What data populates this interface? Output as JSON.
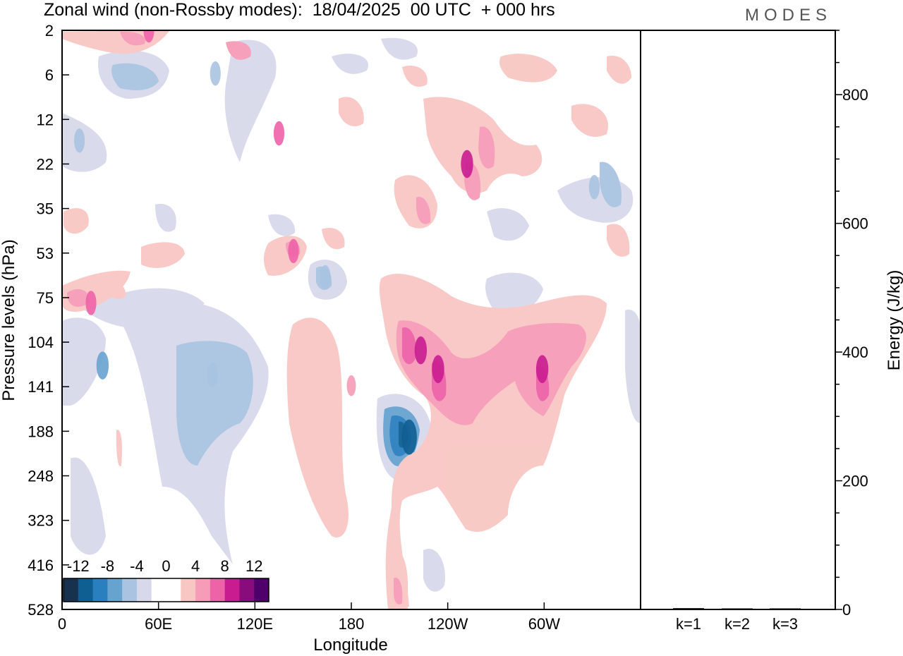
{
  "header": {
    "title": "Zonal wind (non-Rossby modes):  18/04/2025  00 UTC  + 000 hrs",
    "brand": "MODES"
  },
  "chart_data": [
    {
      "type": "heatmap",
      "title": "Zonal wind (non-Rossby modes):  18/04/2025  00 UTC  + 000 hrs",
      "xlabel": "Longitude",
      "ylabel": "Pressure levels (hPa)",
      "x_ticks": [
        "0",
        "60E",
        "120E",
        "180",
        "120W",
        "60W"
      ],
      "y_ticks": [
        "2",
        "6",
        "12",
        "22",
        "35",
        "53",
        "75",
        "104",
        "141",
        "188",
        "248",
        "323",
        "416",
        "528"
      ],
      "y_scale": "log",
      "colorbar": {
        "labels": [
          "-12",
          "-8",
          "-4",
          "0",
          "4",
          "8",
          "12"
        ],
        "colors": [
          "#17324f",
          "#0f5f93",
          "#2a7fbe",
          "#67a3cf",
          "#a9c3e0",
          "#d7d9ea",
          "#ffffff",
          "#ffffff",
          "#f8c7c3",
          "#f69bb8",
          "#ee62a8",
          "#c91c90",
          "#8a0b7c",
          "#4f006a"
        ]
      },
      "features": [
        {
          "lon": 0.265,
          "level": 5.8,
          "value": -6
        },
        {
          "lon": 0.15,
          "level": 1.2,
          "value": 6
        },
        {
          "lon": 0.375,
          "level": 14.5,
          "value": 6
        },
        {
          "lon": 0.03,
          "level": 16,
          "value": -6
        },
        {
          "lon": 0.07,
          "level": 122,
          "value": -8
        },
        {
          "lon": 0.26,
          "level": 130,
          "value": -6
        },
        {
          "lon": 0.6,
          "level": 195,
          "value": -12
        },
        {
          "lon": 0.62,
          "level": 110,
          "value": 8
        },
        {
          "lon": 0.65,
          "level": 125,
          "value": 8
        },
        {
          "lon": 0.83,
          "level": 125,
          "value": 8
        },
        {
          "lon": 0.5,
          "level": 140,
          "value": 4
        },
        {
          "lon": 0.7,
          "level": 22,
          "value": 8
        },
        {
          "lon": 0.92,
          "level": 28,
          "value": -6
        },
        {
          "lon": 0.455,
          "level": 64,
          "value": -6
        },
        {
          "lon": 0.05,
          "level": 78,
          "value": 6
        },
        {
          "lon": 0.4,
          "level": 52,
          "value": 6
        }
      ]
    },
    {
      "type": "bar",
      "ylabel": "Energy (J/kg)",
      "categories": [
        "k=1",
        "k=2",
        "k=3"
      ],
      "values": [
        2,
        1,
        1
      ],
      "ylim": [
        0,
        900
      ],
      "y_ticks": [
        0,
        200,
        400,
        600,
        800
      ]
    }
  ]
}
